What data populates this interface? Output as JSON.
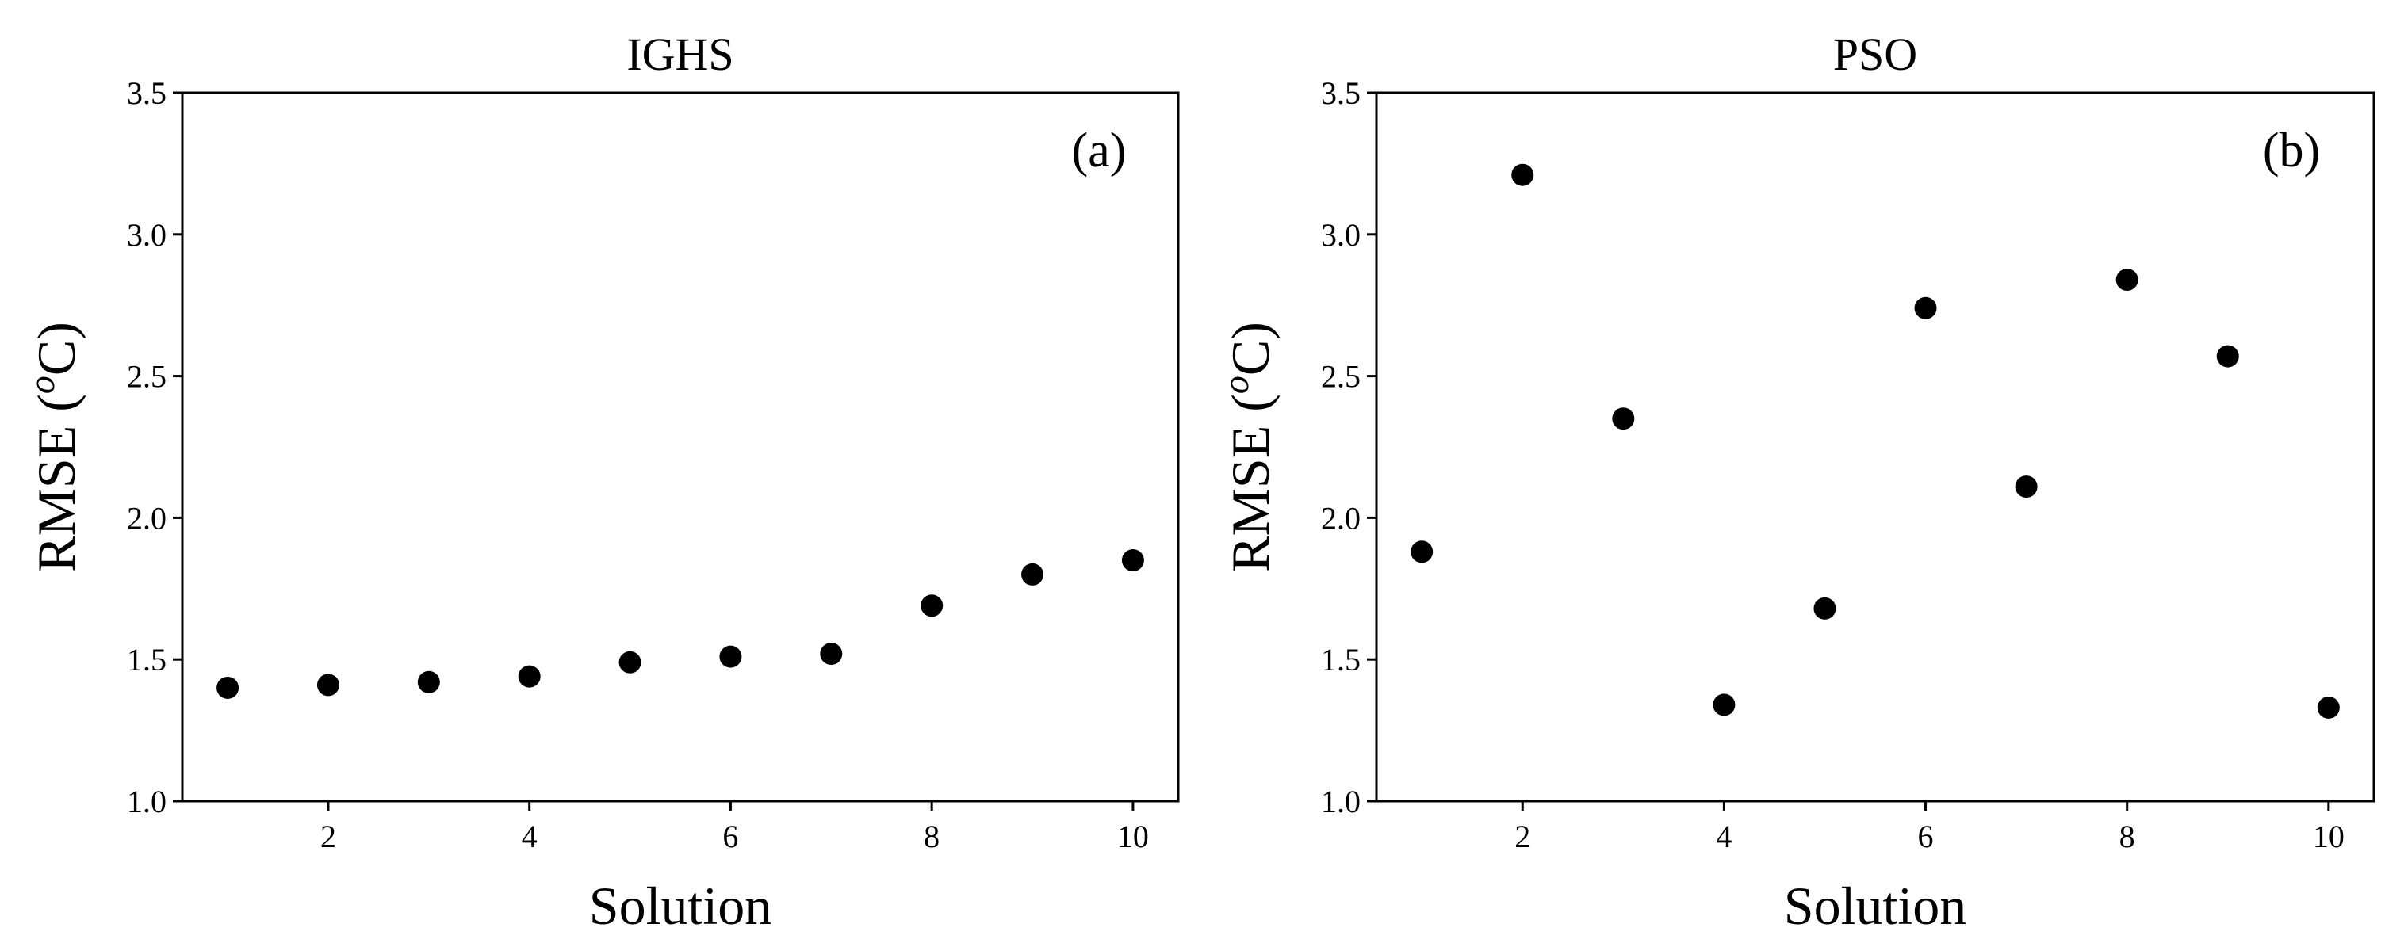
{
  "chart_data": [
    {
      "type": "scatter",
      "title": "IGHS",
      "annotation": "(a)",
      "xlabel": "Solution",
      "ylabel": "RMSE (",
      "ylabel_superscript": "o",
      "ylabel_suffix": "C)",
      "xlim": [
        0.55,
        10.45
      ],
      "ylim": [
        1.0,
        3.5
      ],
      "xticks": [
        2,
        4,
        6,
        8,
        10
      ],
      "xtick_labels": [
        "2",
        "4",
        "6",
        "8",
        "10"
      ],
      "yticks": [
        1.0,
        1.5,
        2.0,
        2.5,
        3.0,
        3.5
      ],
      "ytick_labels": [
        "1.0",
        "1.5",
        "2.0",
        "2.5",
        "3.0",
        "3.5"
      ],
      "grid": false,
      "marker_color": "#000000",
      "x": [
        1,
        2,
        3,
        4,
        5,
        6,
        7,
        8,
        9,
        10
      ],
      "y": [
        1.4,
        1.41,
        1.42,
        1.44,
        1.49,
        1.51,
        1.52,
        1.69,
        1.8,
        1.85
      ]
    },
    {
      "type": "scatter",
      "title": "PSO",
      "annotation": "(b)",
      "xlabel": "Solution",
      "ylabel": "RMSE (",
      "ylabel_superscript": "o",
      "ylabel_suffix": "C)",
      "xlim": [
        0.55,
        10.45
      ],
      "ylim": [
        1.0,
        3.5
      ],
      "xticks": [
        2,
        4,
        6,
        8,
        10
      ],
      "xtick_labels": [
        "2",
        "4",
        "6",
        "8",
        "10"
      ],
      "yticks": [
        1.0,
        1.5,
        2.0,
        2.5,
        3.0,
        3.5
      ],
      "ytick_labels": [
        "1.0",
        "1.5",
        "2.0",
        "2.5",
        "3.0",
        "3.5"
      ],
      "grid": false,
      "marker_color": "#000000",
      "x": [
        1,
        2,
        3,
        4,
        5,
        6,
        7,
        8,
        9,
        10
      ],
      "y": [
        1.88,
        3.21,
        2.35,
        1.34,
        1.68,
        2.74,
        2.11,
        2.84,
        2.57,
        1.33
      ]
    }
  ]
}
